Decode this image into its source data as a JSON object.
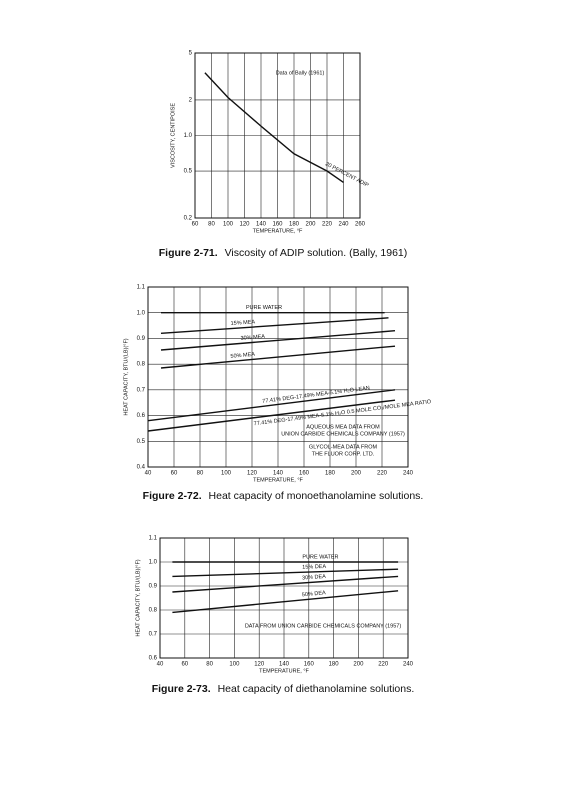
{
  "chart_data": [
    {
      "type": "line",
      "figure_label": "Figure 2-71.",
      "caption": "Viscosity of ADIP solution. (Bally, 1961)",
      "xlabel": "TEMPERATURE, °F",
      "ylabel": "VISCOSITY, CENTIPOISE",
      "xlim": [
        60,
        260
      ],
      "xticks": [
        60,
        80,
        100,
        120,
        140,
        160,
        180,
        200,
        220,
        240,
        260
      ],
      "ylim": [
        0.2,
        5
      ],
      "yscale": "log",
      "yticks": [
        0.2,
        0.5,
        {
          "value": 1,
          "label": "1.0"
        },
        2,
        5
      ],
      "grid": true,
      "annotations": [
        "Data of Bally (1961)"
      ],
      "series": [
        {
          "name": "20 PERCENT ADIP",
          "color": "#111111",
          "x": [
            72,
            100,
            140,
            180,
            220,
            240
          ],
          "values": [
            3.4,
            2.1,
            1.2,
            0.7,
            0.5,
            0.4
          ]
        }
      ]
    },
    {
      "type": "line",
      "figure_label": "Figure 2-72.",
      "caption": "Heat capacity of monoethanolamine solutions.",
      "xlabel": "TEMPERATURE, °F",
      "ylabel": "HEAT CAPACITY, BTU/(LB)(°F)",
      "xlim": [
        40,
        240
      ],
      "xticks": [
        40,
        60,
        80,
        100,
        120,
        140,
        160,
        180,
        200,
        220,
        240
      ],
      "ylim": [
        0.4,
        1.1
      ],
      "yticks": [
        0.4,
        0.5,
        0.6,
        0.7,
        0.8,
        0.9,
        {
          "value": 1,
          "label": "1.0"
        },
        1.1
      ],
      "grid": true,
      "annotations": [
        "AQUEOUS MEA DATA FROM",
        "UNION CARBIDE CHEMICALS COMPANY (1957)",
        "GLYCOL-MEA DATA FROM",
        "THE FLUOR CORP. LTD."
      ],
      "series": [
        {
          "name": "PURE WATER",
          "color": "#111111",
          "x": [
            50,
            222
          ],
          "values": [
            1.0,
            1.0
          ]
        },
        {
          "name": "15% MEA",
          "color": "#111111",
          "x": [
            50,
            225
          ],
          "values": [
            0.92,
            0.98
          ]
        },
        {
          "name": "30% MEA",
          "color": "#111111",
          "x": [
            50,
            230
          ],
          "values": [
            0.855,
            0.93
          ]
        },
        {
          "name": "50% MEA",
          "color": "#111111",
          "x": [
            50,
            230
          ],
          "values": [
            0.785,
            0.87
          ]
        },
        {
          "name": "77.41% DEG-17.49% MEA-5.1% H₂O LEAN",
          "color": "#111111",
          "x": [
            40,
            230
          ],
          "values": [
            0.58,
            0.7
          ]
        },
        {
          "name": "77.41% DEG-17.49% MEA-5.1% H₂O 0.5 MOLE CO₂/MOLE MEA RATIO",
          "color": "#111111",
          "x": [
            40,
            230
          ],
          "values": [
            0.54,
            0.66
          ]
        }
      ]
    },
    {
      "type": "line",
      "figure_label": "Figure 2-73.",
      "caption": "Heat capacity of diethanolamine solutions.",
      "xlabel": "TEMPERATURE, °F",
      "ylabel": "HEAT CAPACITY, BTU/(LB)(°F)",
      "xlim": [
        40,
        240
      ],
      "xticks": [
        40,
        60,
        80,
        100,
        120,
        140,
        160,
        180,
        200,
        220,
        240
      ],
      "ylim": [
        0.6,
        1.1
      ],
      "yticks": [
        0.6,
        0.7,
        0.8,
        0.9,
        {
          "value": 1,
          "label": "1.0"
        },
        1.1
      ],
      "grid": true,
      "annotations": [
        "DATA FROM UNION CARBIDE CHEMICALS COMPANY (1957)"
      ],
      "series": [
        {
          "name": "PURE WATER",
          "color": "#111111",
          "x": [
            50,
            232
          ],
          "values": [
            1.0,
            1.0
          ]
        },
        {
          "name": "15% DEA",
          "color": "#111111",
          "x": [
            50,
            232
          ],
          "values": [
            0.94,
            0.97
          ]
        },
        {
          "name": "30% DEA",
          "color": "#111111",
          "x": [
            50,
            232
          ],
          "values": [
            0.875,
            0.94
          ]
        },
        {
          "name": "50% DEA",
          "color": "#111111",
          "x": [
            50,
            232
          ],
          "values": [
            0.79,
            0.88
          ]
        }
      ]
    }
  ]
}
